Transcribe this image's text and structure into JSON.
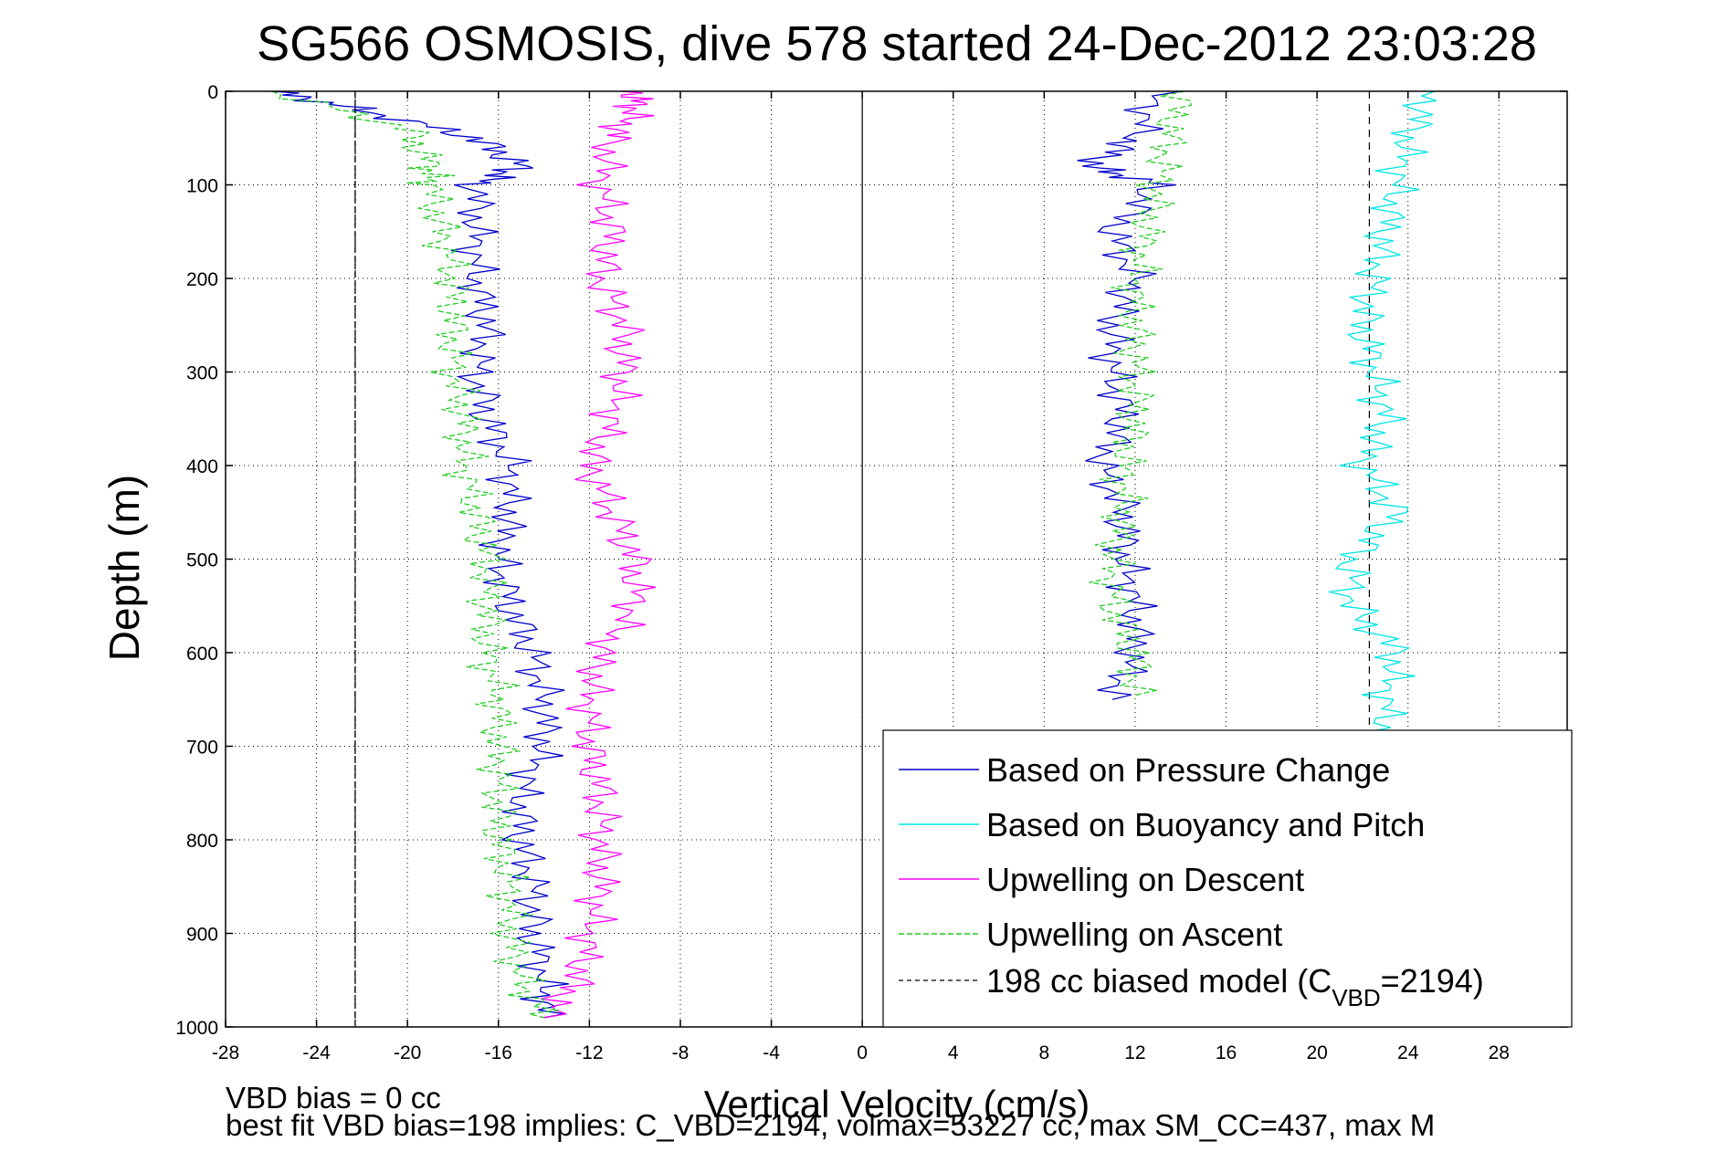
{
  "chart_data": {
    "type": "line",
    "title": "SG566 OSMOSIS, dive 578 started 24-Dec-2012 23:03:28",
    "xlabel": "Vertical Velocity (cm/s)",
    "ylabel": "Depth (m)",
    "xlim": [
      -28,
      31
    ],
    "ylim": [
      0,
      1000
    ],
    "y_reversed": true,
    "grid": true,
    "legend_position": "bottom-right",
    "x_ticks": [
      -28,
      -24,
      -20,
      -16,
      -12,
      -8,
      -4,
      0,
      4,
      8,
      12,
      16,
      20,
      24,
      28
    ],
    "x_tick_labels": [
      "-28",
      "-24",
      "-20",
      "-16",
      "-12",
      "-8",
      "-4",
      "0",
      "4",
      "8",
      "12",
      "16",
      "20",
      "24",
      "28"
    ],
    "y_ticks": [
      0,
      100,
      200,
      300,
      400,
      500,
      600,
      700,
      800,
      900,
      1000
    ],
    "y_tick_labels": [
      "0",
      "100",
      "200",
      "300",
      "400",
      "500",
      "600",
      "700",
      "800",
      "900",
      "1000"
    ],
    "vertical_lines": [
      {
        "x": 0,
        "style": "solid",
        "color": "#000000"
      },
      {
        "x": -22.3,
        "style": "dashed",
        "color": "#000000"
      },
      {
        "x": 22.3,
        "style": "dashed",
        "color": "#000000"
      }
    ],
    "series": [
      {
        "name": "Based on Pressure Change",
        "color": "#0000cc",
        "style": "solid",
        "depth": [
          0,
          20,
          50,
          80,
          100,
          150,
          200,
          250,
          300,
          350,
          400,
          450,
          500,
          550,
          600,
          650,
          700,
          750,
          800,
          850,
          900,
          950,
          990
        ],
        "x": [
          -26,
          -22,
          -17,
          -15,
          -17,
          -17,
          -17,
          -16.5,
          -17,
          -16.5,
          -15.5,
          -15.5,
          -16,
          -15.5,
          -14.5,
          -14,
          -14,
          -15,
          -15,
          -14.5,
          -14.5,
          -14,
          -14
        ]
      },
      {
        "name": "Based on Pressure Change",
        "color": "#0000cc",
        "style": "solid",
        "legend": false,
        "depth": [
          0,
          50,
          80,
          100,
          150,
          200,
          250,
          300,
          350,
          400,
          450,
          500,
          550,
          600,
          650
        ],
        "x": [
          13,
          12,
          10,
          13,
          11,
          12,
          11,
          11,
          11.5,
          10.5,
          11.5,
          11.5,
          12,
          12,
          11
        ]
      },
      {
        "name": "Based on Buoyancy and Pitch",
        "color": "#00e5e5",
        "style": "solid",
        "depth": [
          0,
          50,
          100,
          150,
          200,
          250,
          300,
          350,
          400,
          450,
          500,
          550,
          600,
          650,
          700
        ],
        "x": [
          25,
          24,
          23.5,
          23,
          22.5,
          22,
          22.5,
          23,
          22,
          23.5,
          21.5,
          21.5,
          23.5,
          23,
          23
        ]
      },
      {
        "name": "Upwelling on Descent",
        "color": "#ff00ff",
        "style": "solid",
        "depth": [
          0,
          20,
          50,
          100,
          150,
          200,
          250,
          300,
          350,
          400,
          450,
          500,
          550,
          600,
          650,
          700,
          750,
          800,
          850,
          900,
          950,
          990
        ],
        "x": [
          -10,
          -10,
          -11,
          -11.5,
          -11,
          -11.5,
          -10.5,
          -10.5,
          -11,
          -12,
          -11,
          -10,
          -10,
          -11.5,
          -12,
          -12,
          -11.5,
          -11.5,
          -11.5,
          -12,
          -12.5,
          -14
        ]
      },
      {
        "name": "Upwelling on Ascent",
        "color": "#22cc22",
        "style": "dashed",
        "depth": [
          0,
          40,
          80,
          100,
          150,
          200,
          250,
          300,
          350,
          400,
          450,
          500,
          550,
          600,
          650,
          700,
          750,
          800,
          850,
          900,
          950,
          990
        ],
        "x": [
          -26,
          -20,
          -19,
          -19,
          -18.5,
          -18,
          -18,
          -18,
          -17.5,
          -17.5,
          -17,
          -16.5,
          -16.5,
          -16.5,
          -16,
          -16,
          -16,
          -16,
          -15.5,
          -15.5,
          -15,
          -14
        ]
      },
      {
        "name": "Upwelling on Ascent",
        "color": "#22cc22",
        "style": "dashed",
        "legend": false,
        "depth": [
          0,
          50,
          100,
          150,
          200,
          250,
          300,
          350,
          400,
          450,
          500,
          550,
          600,
          650
        ],
        "x": [
          14,
          13.5,
          13,
          12.5,
          12,
          12,
          12,
          12,
          11.5,
          11.5,
          11,
          11,
          12,
          12
        ]
      },
      {
        "name": "198 cc biased model (C_VBD=2194)",
        "color": "#000000",
        "style": "dashed",
        "depth": [
          0,
          1000
        ],
        "x": [
          -22.3,
          -22.3
        ]
      }
    ]
  },
  "legend": {
    "items": [
      {
        "label": "Based on Pressure Change",
        "color": "#0000cc",
        "dash": "none"
      },
      {
        "label": "Based on Buoyancy and Pitch",
        "color": "#00e5e5",
        "dash": "none"
      },
      {
        "label": "Upwelling on Descent",
        "color": "#ff00ff",
        "dash": "none"
      },
      {
        "label": "Upwelling on Ascent",
        "color": "#22cc22",
        "dash": "dashed"
      }
    ],
    "model_label_prefix": "198 cc biased model (C",
    "model_label_subscript": "VBD",
    "model_label_suffix": "=2194)"
  },
  "notes": {
    "line1": "VBD bias = 0 cc",
    "line2": "best fit VBD bias=198 implies: C_VBD=2194, volmax=53227 cc, max SM_CC=437, max M"
  }
}
